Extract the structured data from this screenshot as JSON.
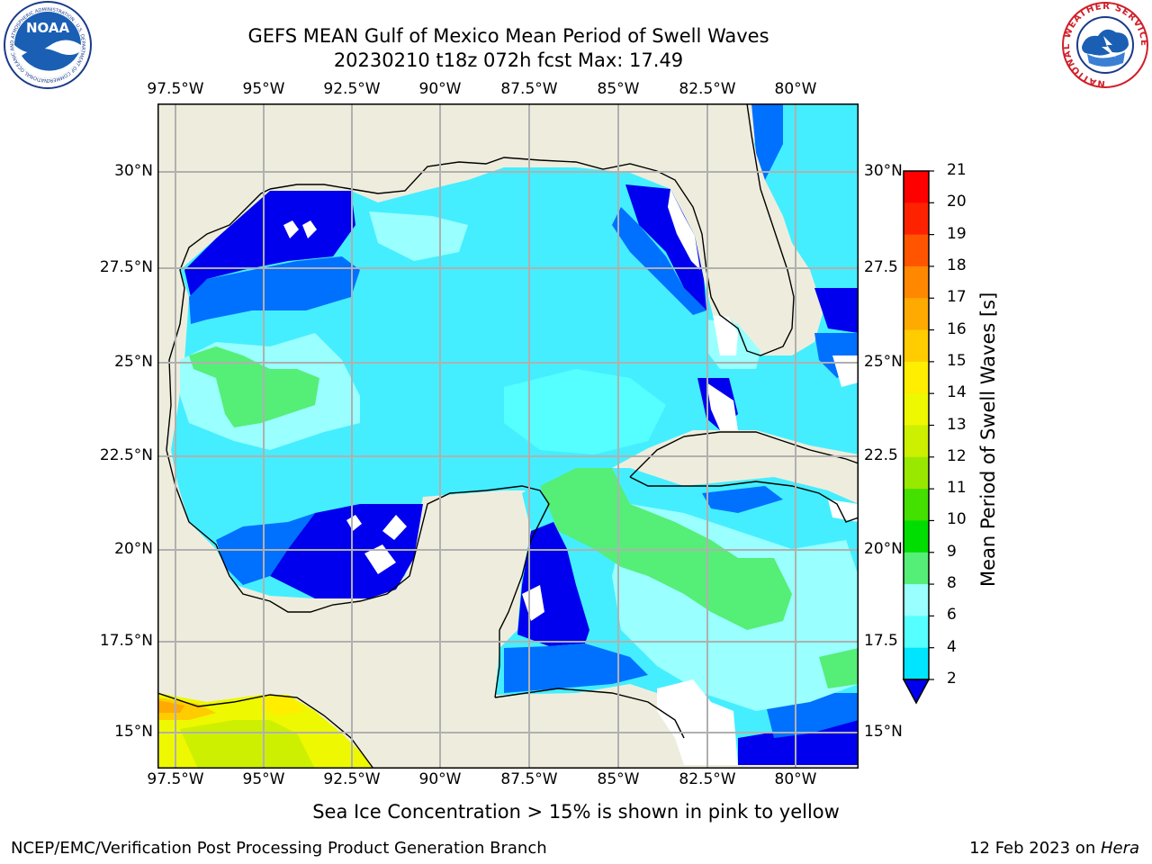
{
  "header": {
    "title_line1": "GEFS MEAN Gulf of Mexico Mean Period of Swell Waves",
    "title_line2": "20230210 t18z 072h fcst   Max: 17.49"
  },
  "map": {
    "lon_labels": [
      "97.5°W",
      "95°W",
      "92.5°W",
      "90°W",
      "87.5°W",
      "85°W",
      "82.5°W",
      "80°W"
    ],
    "lat_labels": [
      "30°N",
      "27.5°N",
      "25°N",
      "22.5°N",
      "20°N",
      "17.5°N",
      "15°N"
    ],
    "lat_labels_right": [
      "30°N",
      "27.5",
      "25°N",
      "22.5",
      "20°N",
      "17.5",
      "15°N"
    ],
    "colors": {
      "land": "#EEEDDD",
      "grid": "#B0B0B0",
      "coast": "#000000"
    }
  },
  "colorbar": {
    "label": "Mean Period of Swell Waves [s]",
    "ticks": [
      "2",
      "4",
      "6",
      "8",
      "9",
      "10",
      "11",
      "12",
      "13",
      "14",
      "15",
      "16",
      "17",
      "18",
      "19",
      "20",
      "21"
    ],
    "colors": [
      "#0000EE",
      "#0070FF",
      "#00E5FF",
      "#55FFFF",
      "#99FFFF",
      "#55EE77",
      "#00DD00",
      "#44E000",
      "#99E800",
      "#CCF000",
      "#EEF800",
      "#FFEE00",
      "#FFCC00",
      "#FFAA00",
      "#FF8800",
      "#FF5500",
      "#FF2200",
      "#FF0000"
    ]
  },
  "subtitle": "Sea Ice Concentration > 15% is shown in pink to yellow",
  "footer": {
    "left": "NCEP/EMC/Verification Post Processing Product Generation Branch",
    "right_prefix": "12 Feb 2023 on ",
    "right_machine": "Hera"
  },
  "logos": {
    "left_text": "NOAA",
    "left_ring": "NATIONAL OCEANIC AND ATMOSPHERIC ADMINISTRATION · U.S. DEPARTMENT OF COMMERCE",
    "right_ring": "NATIONAL WEATHER SERVICE"
  }
}
